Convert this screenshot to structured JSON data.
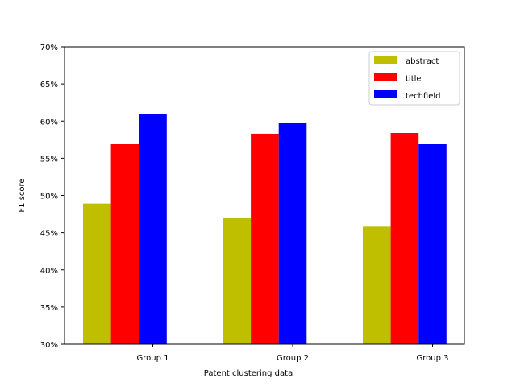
{
  "chart_data": {
    "type": "bar",
    "title": "",
    "xlabel": "Patent clustering data",
    "ylabel": "F1 score",
    "categories": [
      "Group 1",
      "Group 2",
      "Group 3"
    ],
    "series": [
      {
        "name": "abstract",
        "color": "#bfbf00",
        "values": [
          48.9,
          47.0,
          45.9
        ]
      },
      {
        "name": "title",
        "color": "#ff0000",
        "values": [
          56.9,
          58.3,
          58.4
        ]
      },
      {
        "name": "techfield",
        "color": "#0000ff",
        "values": [
          60.9,
          59.8,
          56.9
        ]
      }
    ],
    "ylim": [
      30,
      70
    ],
    "yticks": [
      30,
      35,
      40,
      45,
      50,
      55,
      60,
      65,
      70
    ],
    "ytick_labels": [
      "30%",
      "35%",
      "40%",
      "45%",
      "50%",
      "55%",
      "60%",
      "65%",
      "70%"
    ],
    "grid": false,
    "legend_position": "top-right"
  }
}
